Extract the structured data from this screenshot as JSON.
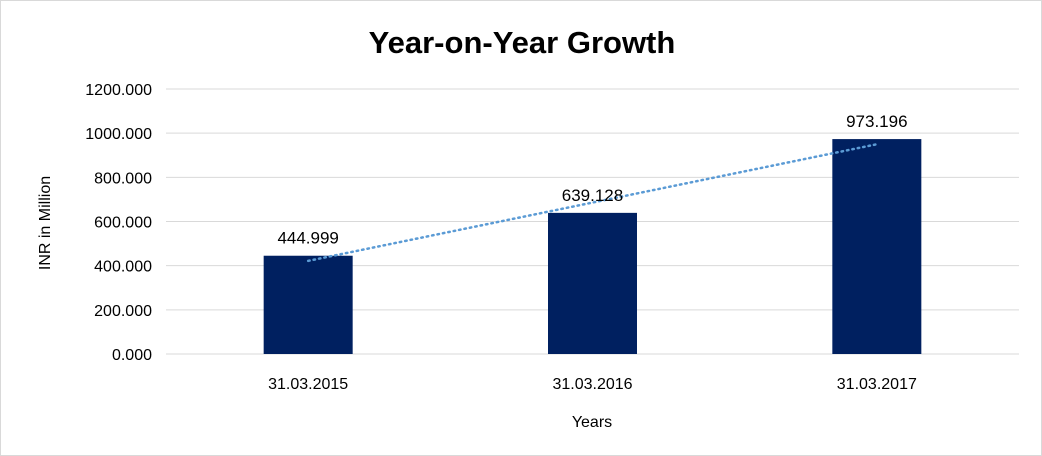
{
  "chart_data": {
    "type": "bar",
    "title": "Year-on-Year Growth",
    "xlabel": "Years",
    "ylabel": "INR in Million",
    "categories": [
      "31.03.2015",
      "31.03.2016",
      "31.03.2017"
    ],
    "values": [
      444.999,
      639.128,
      973.196
    ],
    "data_labels": [
      "444.999",
      "639.128",
      "973.196"
    ],
    "ylim": [
      0,
      1200
    ],
    "yticks": [
      "0.000",
      "200.000",
      "400.000",
      "600.000",
      "800.000",
      "1000.000",
      "1200.000"
    ],
    "grid": true,
    "legend": "none",
    "trendline": {
      "type": "linear",
      "style": "dotted"
    },
    "colors": {
      "bar": "#002060",
      "trendline": "#5b9bd5",
      "grid": "#d9d9d9"
    }
  }
}
